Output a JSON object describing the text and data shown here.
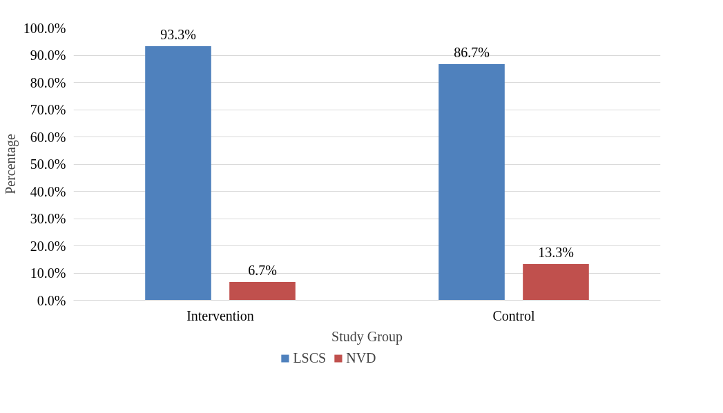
{
  "chart_data": {
    "type": "bar",
    "xlabel": "Study Group",
    "ylabel": "Percentage",
    "categories": [
      "Intervention",
      "Control"
    ],
    "series": [
      {
        "name": "LSCS",
        "color": "#4f81bd",
        "values": [
          93.3,
          86.7
        ],
        "value_labels": [
          "93.3%",
          "86.7%"
        ]
      },
      {
        "name": "NVD",
        "color": "#c0504d",
        "values": [
          6.7,
          13.3
        ],
        "value_labels": [
          "6.7%",
          "13.3%"
        ]
      }
    ],
    "ylim": [
      0,
      100
    ],
    "yticks": [
      {
        "value": 0,
        "label": "0.0%"
      },
      {
        "value": 10,
        "label": "10.0%"
      },
      {
        "value": 20,
        "label": "20.0%"
      },
      {
        "value": 30,
        "label": "30.0%"
      },
      {
        "value": 40,
        "label": "40.0%"
      },
      {
        "value": 50,
        "label": "50.0%"
      },
      {
        "value": 60,
        "label": "60.0%"
      },
      {
        "value": 70,
        "label": "70.0%"
      },
      {
        "value": 80,
        "label": "80.0%"
      },
      {
        "value": 90,
        "label": "90.0%"
      },
      {
        "value": 100,
        "label": "100.0%"
      }
    ],
    "grid": "y",
    "legend": "bottom"
  }
}
